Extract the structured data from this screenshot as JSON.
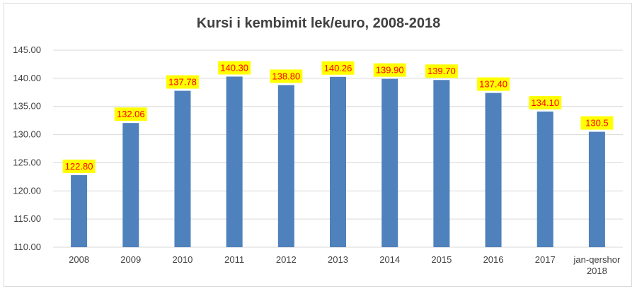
{
  "chart_data": {
    "type": "bar",
    "title": "Kursi i kembimit lek/euro, 2008-2018",
    "categories": [
      "2008",
      "2009",
      "2010",
      "2011",
      "2012",
      "2013",
      "2014",
      "2015",
      "2016",
      "2017",
      "jan-qershor 2018"
    ],
    "category_lines": [
      [
        "2008"
      ],
      [
        "2009"
      ],
      [
        "2010"
      ],
      [
        "2011"
      ],
      [
        "2012"
      ],
      [
        "2013"
      ],
      [
        "2014"
      ],
      [
        "2015"
      ],
      [
        "2016"
      ],
      [
        "2017"
      ],
      [
        "jan-qershor",
        "2018"
      ]
    ],
    "values": [
      122.8,
      132.06,
      137.78,
      140.3,
      138.8,
      140.26,
      139.9,
      139.7,
      137.4,
      134.1,
      130.5
    ],
    "value_labels": [
      "122.80",
      "132.06",
      "137.78",
      "140.30",
      "138.80",
      "140.26",
      "139.90",
      "139.70",
      "137.40",
      "134.10",
      "130.5"
    ],
    "y_ticks": [
      "110.00",
      "115.00",
      "120.00",
      "125.00",
      "130.00",
      "135.00",
      "140.00",
      "145.00"
    ],
    "ylim": [
      110,
      145
    ],
    "xlabel": "",
    "ylabel": "",
    "grid": true,
    "legend": "none",
    "colors": {
      "bar": "#4f81bd",
      "label_bg": "#ffff00",
      "label_text": "#ff0000",
      "grid": "#d9d9d9",
      "axis_text": "#404040",
      "title": "#404040"
    }
  }
}
